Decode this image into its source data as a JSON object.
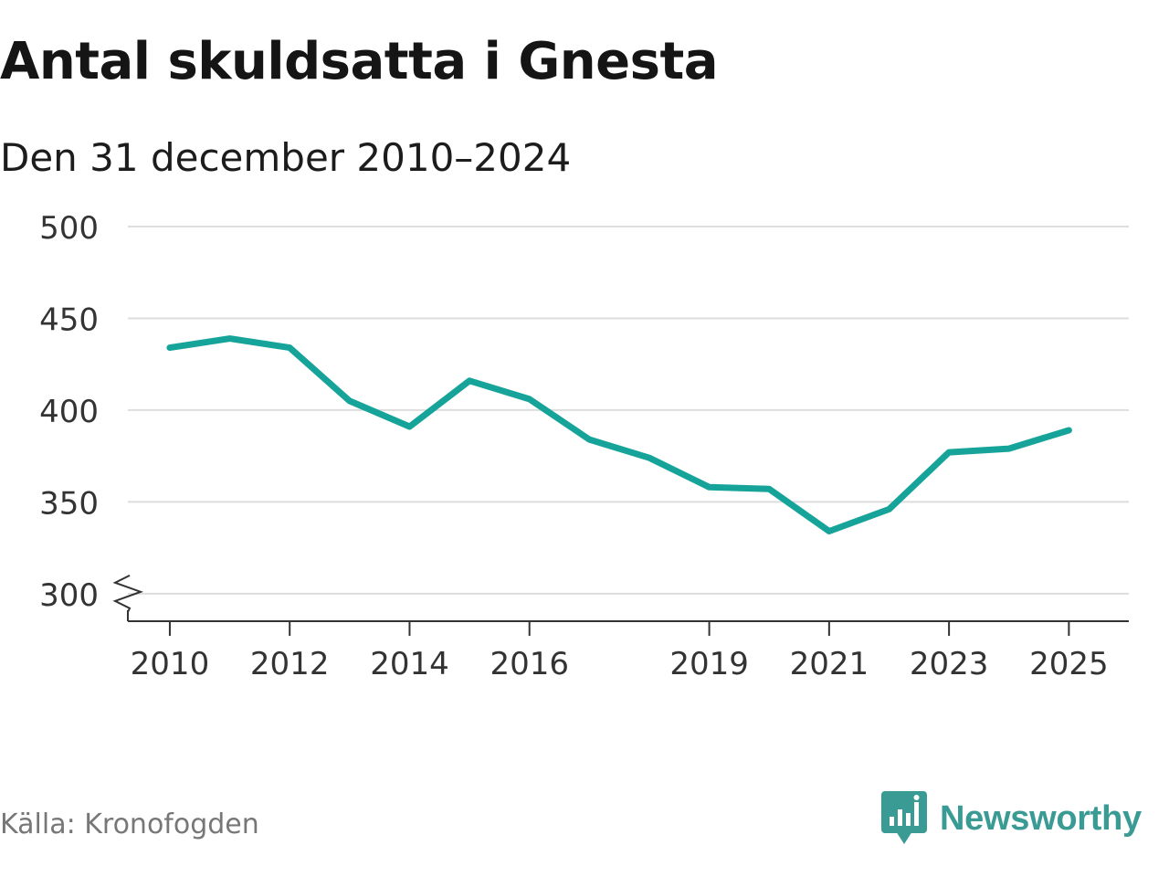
{
  "title": "Antal skuldsatta i Gnesta",
  "subtitle": "Den 31 december 2010–2024",
  "source": "Källa: Kronofogden",
  "brand": {
    "name": "Newsworthy",
    "icon": "newsworthy-logo-icon",
    "color": "#3a9b95"
  },
  "chart_data": {
    "type": "line",
    "x": [
      2010,
      2011,
      2012,
      2013,
      2014,
      2015,
      2016,
      2017,
      2018,
      2019,
      2020,
      2021,
      2022,
      2023,
      2024,
      2025
    ],
    "series": [
      {
        "values": [
          434,
          439,
          434,
          405,
          391,
          416,
          406,
          384,
          374,
          358,
          357,
          334,
          346,
          377,
          379,
          389
        ],
        "color": "#16a49a"
      }
    ],
    "xticks": [
      2010,
      2012,
      2014,
      2016,
      2019,
      2021,
      2023,
      2025
    ],
    "yticks": [
      300,
      350,
      400,
      450,
      500
    ],
    "ylim": [
      285,
      500
    ],
    "xlim": [
      2009.3,
      2026.0
    ],
    "y_axis_break": true,
    "grid": true,
    "colors": {
      "line": "#16a49a",
      "grid": "#dddddd",
      "axis": "#333333",
      "tick_label": "#333333"
    }
  }
}
